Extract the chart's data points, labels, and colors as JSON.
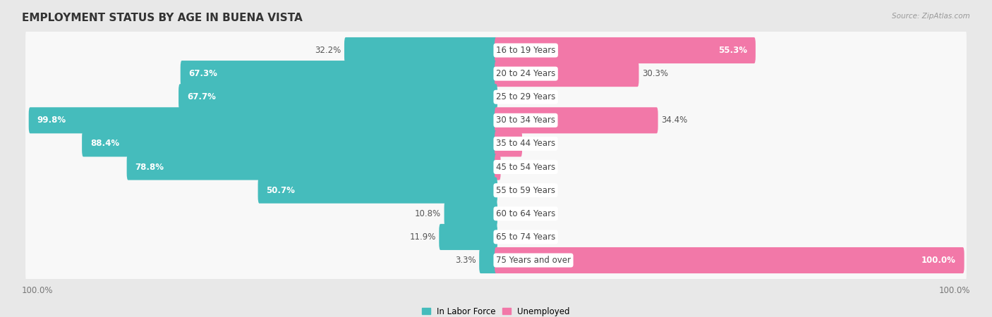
{
  "title": "EMPLOYMENT STATUS BY AGE IN BUENA VISTA",
  "source": "Source: ZipAtlas.com",
  "categories": [
    "16 to 19 Years",
    "20 to 24 Years",
    "25 to 29 Years",
    "30 to 34 Years",
    "35 to 44 Years",
    "45 to 54 Years",
    "55 to 59 Years",
    "60 to 64 Years",
    "65 to 74 Years",
    "75 Years and over"
  ],
  "labor_force": [
    32.2,
    67.3,
    67.7,
    99.8,
    88.4,
    78.8,
    50.7,
    10.8,
    11.9,
    3.3
  ],
  "unemployed": [
    55.3,
    30.3,
    0.0,
    34.4,
    5.3,
    0.7,
    0.0,
    0.0,
    0.0,
    100.0
  ],
  "labor_force_color": "#45BCBC",
  "unemployed_color": "#F278A8",
  "row_bg_color": "#ebebeb",
  "bar_bg_color": "#f8f8f8",
  "background_color": "#e8e8e8",
  "axis_label_left": "100.0%",
  "axis_label_right": "100.0%",
  "legend_labor": "In Labor Force",
  "legend_unemployed": "Unemployed",
  "title_fontsize": 11,
  "label_fontsize": 8.5,
  "cat_label_fontsize": 8.5,
  "bar_height": 0.52
}
